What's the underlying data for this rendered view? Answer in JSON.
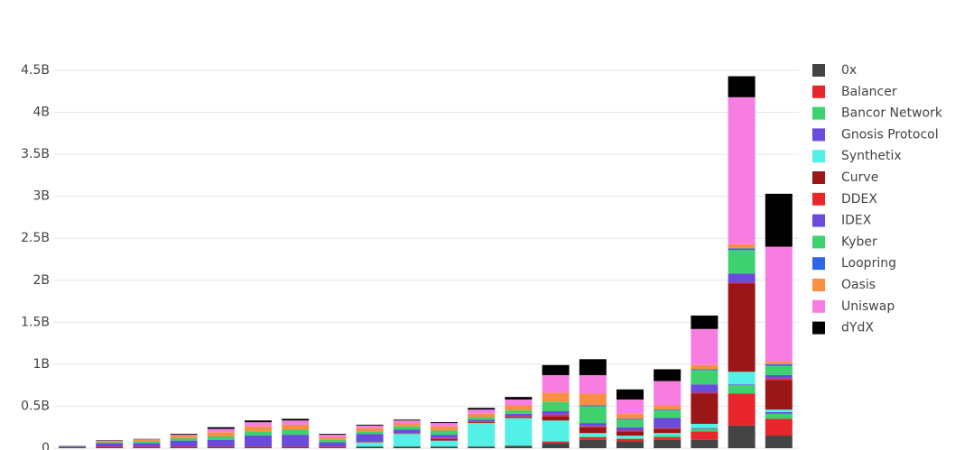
{
  "chart_data": {
    "type": "stacked_bar",
    "categories": [
      null,
      null,
      null,
      null,
      null,
      null,
      null,
      null,
      null,
      null,
      null,
      null,
      null,
      null,
      null,
      null,
      null,
      null,
      null,
      null
    ],
    "ylim": [
      0,
      4.5
    ],
    "yticks": [
      0,
      {
        "value": 0.5,
        "label": "0.5B"
      },
      {
        "value": 1,
        "label": "1B"
      },
      {
        "value": 1.5,
        "label": "1.5B"
      },
      {
        "value": 2,
        "label": "2B"
      },
      {
        "value": 2.5,
        "label": "2.5B"
      },
      {
        "value": 3,
        "label": "3B"
      },
      {
        "value": 3.5,
        "label": "3.5B"
      },
      {
        "value": 4,
        "label": "4B"
      },
      {
        "value": 4.5,
        "label": "4.5B"
      }
    ],
    "grid": true,
    "legend": "right",
    "series": [
      {
        "name": "0x",
        "color": "#444444",
        "values": [
          0.01,
          0.01,
          0.01,
          0.01,
          0.01,
          0.01,
          0.01,
          0.01,
          0.02,
          0.02,
          0.02,
          0.02,
          0.03,
          0.06,
          0.1,
          0.08,
          0.1,
          0.1,
          0.27,
          0.15
        ]
      },
      {
        "name": "Balancer",
        "color": "#e8262b",
        "values": [
          0,
          0,
          0,
          0,
          0,
          0,
          0,
          0,
          0,
          0,
          0,
          0,
          0,
          0.02,
          0.03,
          0.03,
          0.03,
          0.1,
          0.38,
          0.2
        ]
      },
      {
        "name": "Bancor Network",
        "color": "#3dd16f",
        "values": [
          0,
          0,
          0,
          0,
          0,
          0,
          0,
          0,
          0,
          0,
          0,
          0,
          0,
          0,
          0.01,
          0.01,
          0.02,
          0.03,
          0.1,
          0.06
        ]
      },
      {
        "name": "Gnosis Protocol",
        "color": "#6a4bdc",
        "values": [
          0,
          0,
          0,
          0,
          0,
          0,
          0,
          0,
          0,
          0,
          0,
          0,
          0,
          0,
          0,
          0,
          0,
          0.01,
          0.01,
          0.02
        ]
      },
      {
        "name": "Synthetix",
        "color": "#52f0e6",
        "values": [
          0,
          0,
          0,
          0,
          0,
          0,
          0,
          0,
          0.05,
          0.15,
          0.07,
          0.28,
          0.33,
          0.25,
          0.04,
          0.03,
          0.03,
          0.05,
          0.15,
          0.03
        ]
      },
      {
        "name": "Curve",
        "color": "#9b1717",
        "values": [
          0,
          0,
          0,
          0,
          0,
          0,
          0,
          0,
          0,
          0,
          0.02,
          0.01,
          0.01,
          0.05,
          0.07,
          0.05,
          0.05,
          0.36,
          1.05,
          0.35
        ]
      },
      {
        "name": "DDEX",
        "color": "#e8262b",
        "values": [
          0,
          0.01,
          0.01,
          0.01,
          0.01,
          0.01,
          0.01,
          0.01,
          0.01,
          0.01,
          0.01,
          0.01,
          0.01,
          0.02,
          0.01,
          0.01,
          0.01,
          0.01,
          0.01,
          0.02
        ]
      },
      {
        "name": "IDEX",
        "color": "#6a4bdc",
        "values": [
          0.01,
          0.04,
          0.04,
          0.07,
          0.08,
          0.13,
          0.14,
          0.05,
          0.09,
          0.04,
          0.04,
          0.02,
          0.03,
          0.04,
          0.04,
          0.04,
          0.12,
          0.1,
          0.11,
          0.04
        ]
      },
      {
        "name": "Kyber",
        "color": "#3dd16f",
        "values": [
          0.005,
          0.01,
          0.02,
          0.03,
          0.04,
          0.05,
          0.06,
          0.03,
          0.03,
          0.04,
          0.05,
          0.03,
          0.04,
          0.11,
          0.2,
          0.09,
          0.09,
          0.17,
          0.28,
          0.11
        ]
      },
      {
        "name": "Loopring",
        "color": "#3064e8",
        "values": [
          0,
          0,
          0,
          0,
          0,
          0,
          0,
          0,
          0,
          0,
          0,
          0,
          0,
          0,
          0.01,
          0.01,
          0.01,
          0.01,
          0.02,
          0.02
        ]
      },
      {
        "name": "Oasis",
        "color": "#f98f45",
        "values": [
          0.003,
          0.015,
          0.02,
          0.03,
          0.05,
          0.06,
          0.06,
          0.03,
          0.04,
          0.04,
          0.05,
          0.04,
          0.06,
          0.11,
          0.14,
          0.06,
          0.05,
          0.05,
          0.05,
          0.03
        ]
      },
      {
        "name": "Uniswap",
        "color": "#f77ee0",
        "values": [
          0,
          0.005,
          0.005,
          0.01,
          0.04,
          0.05,
          0.05,
          0.03,
          0.03,
          0.03,
          0.04,
          0.05,
          0.07,
          0.21,
          0.22,
          0.17,
          0.29,
          0.43,
          1.75,
          1.37
        ]
      },
      {
        "name": "dYdX",
        "color": "#000000",
        "values": [
          0.002,
          0.005,
          0.005,
          0.01,
          0.02,
          0.02,
          0.02,
          0.01,
          0.01,
          0.01,
          0.01,
          0.02,
          0.03,
          0.12,
          0.19,
          0.12,
          0.14,
          0.16,
          0.25,
          0.63
        ]
      }
    ]
  }
}
